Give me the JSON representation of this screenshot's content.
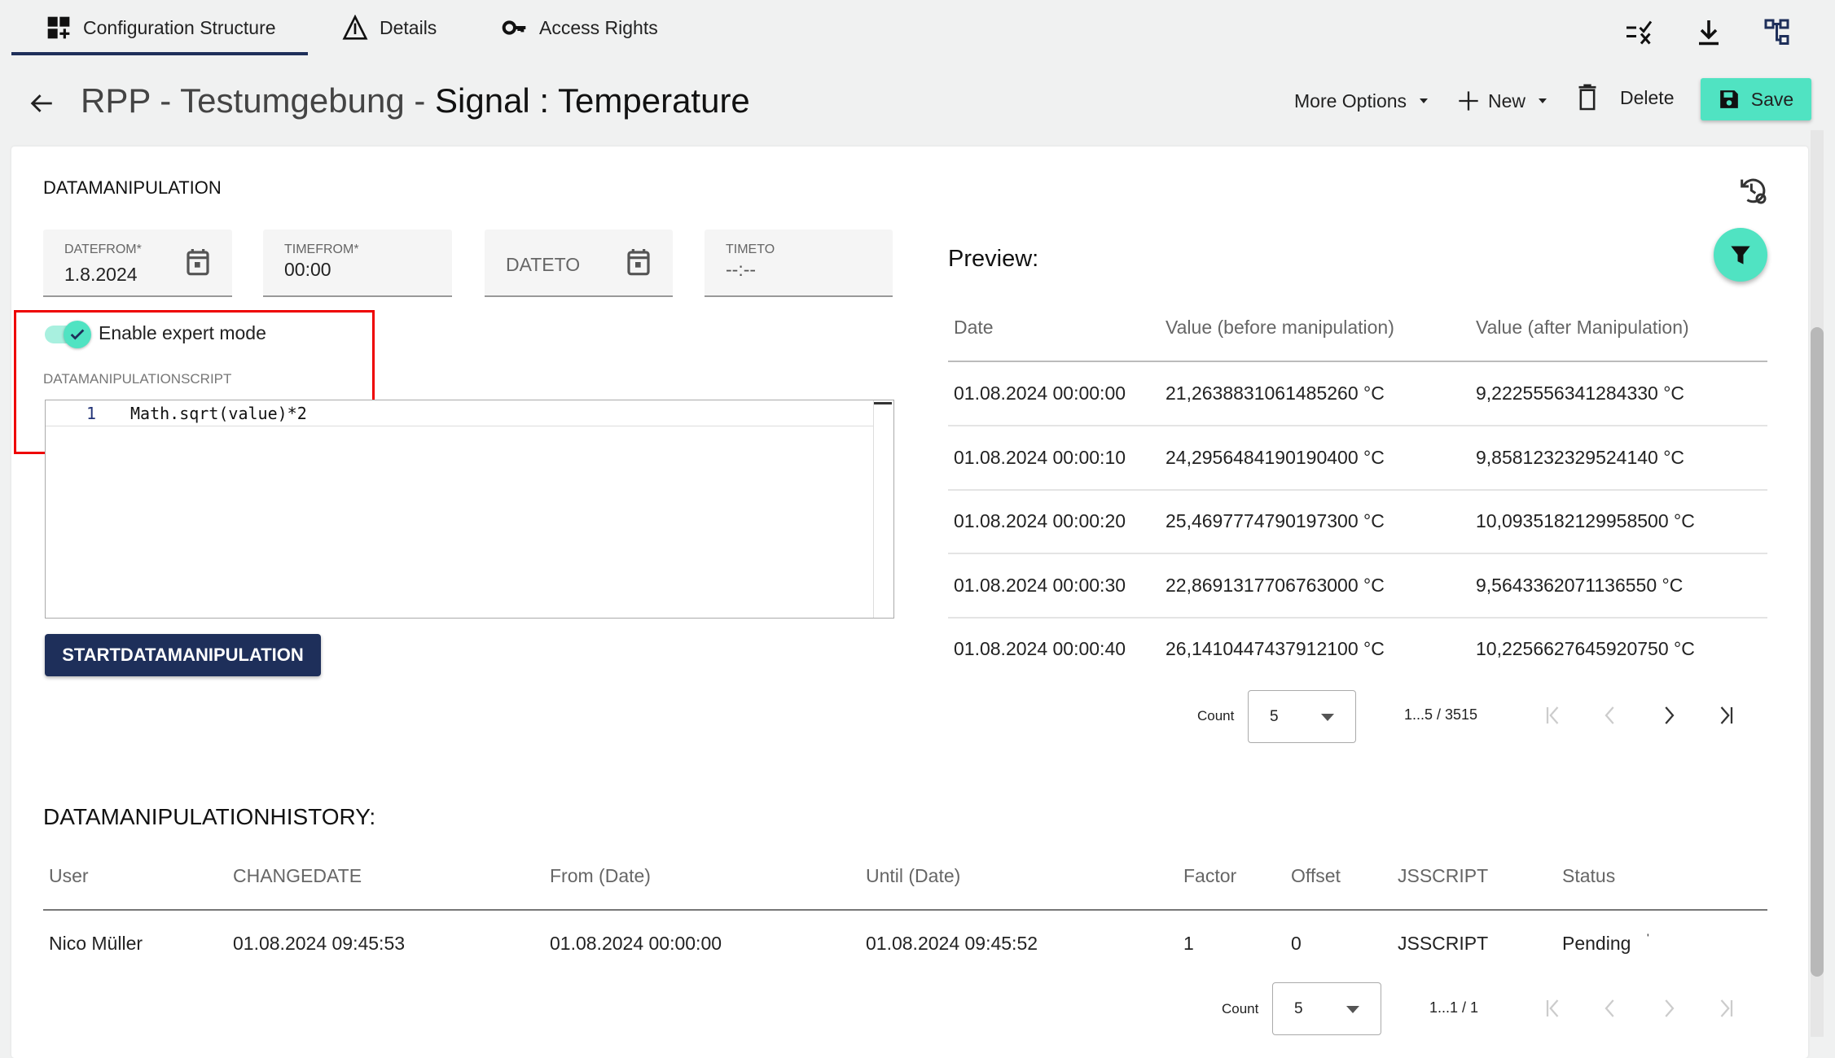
{
  "tabs": [
    {
      "label": "Configuration Structure",
      "icon": "dashboard-add-icon",
      "active": true
    },
    {
      "label": "Details",
      "icon": "warning-triangle-icon"
    },
    {
      "label": "Access Rights",
      "icon": "key-icon"
    }
  ],
  "toolbar_icons": [
    "list-check-icon",
    "download-icon",
    "tree-structure-icon"
  ],
  "header": {
    "title_prefix": "RPP - Testumgebung - ",
    "title_main": "Signal : Temperature",
    "more_options": "More Options",
    "new": "New",
    "delete": "Delete",
    "save": "Save"
  },
  "colors": {
    "accent": "#50e3c2",
    "primary": "#1e2f5a",
    "highlight": "#ee0000"
  },
  "manip": {
    "title": "DATAMANIPULATION",
    "fields": {
      "datefrom_label": "DATEFROM*",
      "datefrom_value": "1.8.2024",
      "timefrom_label": "TIMEFROM*",
      "timefrom_value": "00:00",
      "dateto_placeholder": "DATETO",
      "timeto_label": "TIMETO",
      "timeto_value": "--:--"
    },
    "expert_mode_label": "Enable expert mode",
    "expert_mode_on": true,
    "script_label": "DATAMANIPULATIONSCRIPT",
    "script_line_no": "1",
    "script_code": "Math.sqrt(value)*2",
    "start_button": "STARTDATAMANIPULATION"
  },
  "preview": {
    "title": "Preview:",
    "columns": [
      "Date",
      "Value (before manipulation)",
      "Value (after Manipulation)"
    ],
    "rows": [
      [
        "01.08.2024 00:00:00",
        "21,2638831061485260 °C",
        "9,2225556341284330 °C"
      ],
      [
        "01.08.2024 00:00:10",
        "24,2956484190190400 °C",
        "9,8581232329524140 °C"
      ],
      [
        "01.08.2024 00:00:20",
        "25,4697774790197300 °C",
        "10,0935182129958500 °C"
      ],
      [
        "01.08.2024 00:00:30",
        "22,8691317706763000 °C",
        "9,5643362071136550 °C"
      ],
      [
        "01.08.2024 00:00:40",
        "26,1410447437912100 °C",
        "10,2256627645920750 °C"
      ]
    ],
    "count_label": "Count",
    "count_value": "5",
    "range": "1...5 / 3515"
  },
  "history": {
    "title": "DATAMANIPULATIONHISTORY:",
    "columns": [
      "User",
      "CHANGEDATE",
      "From (Date)",
      "Until (Date)",
      "Factor",
      "Offset",
      "JSSCRIPT",
      "Status"
    ],
    "rows": [
      [
        "Nico Müller",
        "01.08.2024 09:45:53",
        "01.08.2024 00:00:00",
        "01.08.2024 09:45:52",
        "1",
        "0",
        "JSSCRIPT",
        "Pending"
      ]
    ],
    "count_label": "Count",
    "count_value": "5",
    "range": "1...1 / 1"
  }
}
